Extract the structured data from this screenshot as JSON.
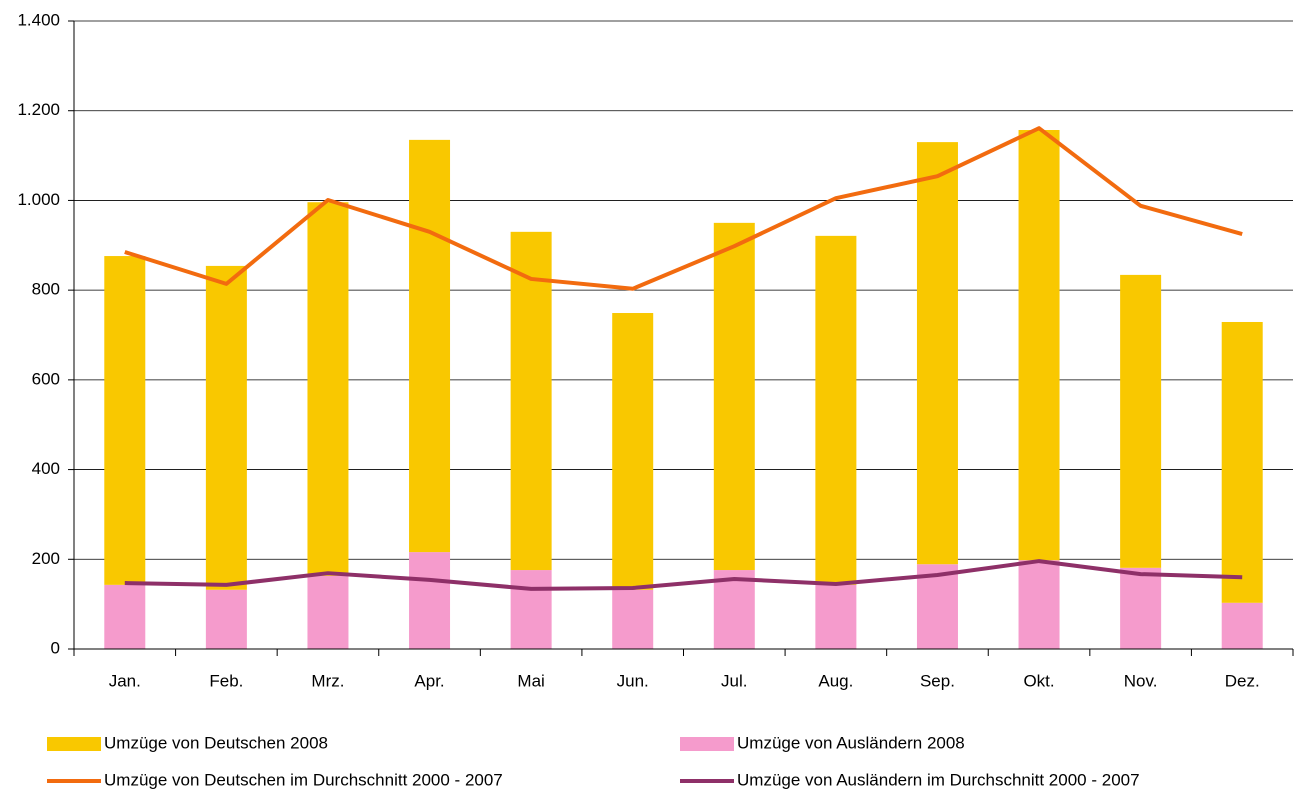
{
  "chart_data": {
    "type": "bar",
    "stacked": true,
    "categories": [
      "Jan.",
      "Feb.",
      "Mrz.",
      "Apr.",
      "Mai",
      "Jun.",
      "Jul.",
      "Aug.",
      "Sep.",
      "Okt.",
      "Nov.",
      "Dez."
    ],
    "series": [
      {
        "name": "Umzüge von Deutschen 2008",
        "type": "bar",
        "color": "#f9c800",
        "values": [
          733,
          722,
          833,
          919,
          754,
          617,
          774,
          778,
          941,
          959,
          653,
          626
        ]
      },
      {
        "name": "Umzüge von Ausländern 2008",
        "type": "bar",
        "color": "#f59bcc",
        "values": [
          143,
          132,
          163,
          216,
          176,
          132,
          176,
          143,
          189,
          198,
          181,
          103
        ]
      },
      {
        "name": "Umzüge von Deutschen im Durchschnitt 2000 - 2007",
        "type": "line",
        "color": "#f26b0f",
        "values": [
          885,
          814,
          1001,
          930,
          825,
          803,
          898,
          1005,
          1054,
          1161,
          988,
          925
        ]
      },
      {
        "name": "Umzüge von Ausländern im Durchschnitt 2000 - 2007",
        "type": "line",
        "color": "#8e3068",
        "values": [
          147,
          143,
          169,
          154,
          134,
          136,
          156,
          145,
          165,
          196,
          167,
          160
        ]
      }
    ],
    "ylim": [
      0,
      1400
    ],
    "yticks": [
      0,
      200,
      400,
      600,
      800,
      {
        "value": 1000,
        "label": "1.000"
      },
      {
        "value": 1200,
        "label": "1.200"
      },
      {
        "value": 1400,
        "label": "1.400"
      }
    ],
    "grid": true
  }
}
